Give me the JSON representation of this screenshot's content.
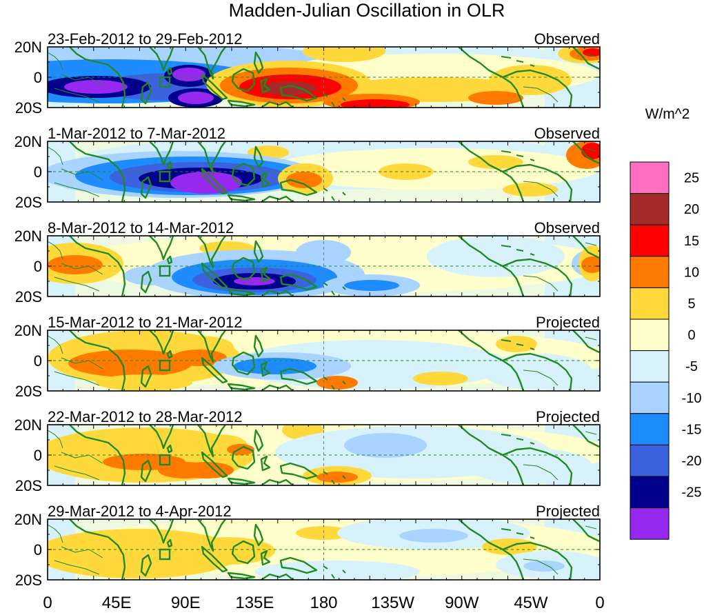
{
  "title": "Madden-Julian Oscillation in OLR",
  "colorbar": {
    "unit": "W/m^2",
    "levels": [
      "25",
      "20",
      "15",
      "10",
      "5",
      "0",
      "-5",
      "-10",
      "-15",
      "-20",
      "-25"
    ],
    "colors": [
      "#ff6fbf",
      "#a52a2a",
      "#ff0000",
      "#ff7a00",
      "#ffd83c",
      "#ffffcc",
      "#d8f2fb",
      "#a8d4ff",
      "#1e8cff",
      "#3c62e0",
      "#00008c",
      "#9628f0"
    ]
  },
  "map": {
    "lat_labels": [
      "20N",
      "0",
      "20S"
    ],
    "lon_labels": [
      "0",
      "45E",
      "90E",
      "135E",
      "180",
      "135W",
      "90W",
      "45W",
      "0"
    ]
  },
  "panels": [
    {
      "dates": "23-Feb-2012 to 29-Feb-2012",
      "status": "Observed"
    },
    {
      "dates": "1-Mar-2012 to 7-Mar-2012",
      "status": "Observed"
    },
    {
      "dates": "8-Mar-2012 to 14-Mar-2012",
      "status": "Observed"
    },
    {
      "dates": "15-Mar-2012 to 21-Mar-2012",
      "status": "Projected"
    },
    {
      "dates": "22-Mar-2012 to 28-Mar-2012",
      "status": "Projected"
    },
    {
      "dates": "29-Mar-2012 to 4-Apr-2012",
      "status": "Projected"
    }
  ]
}
